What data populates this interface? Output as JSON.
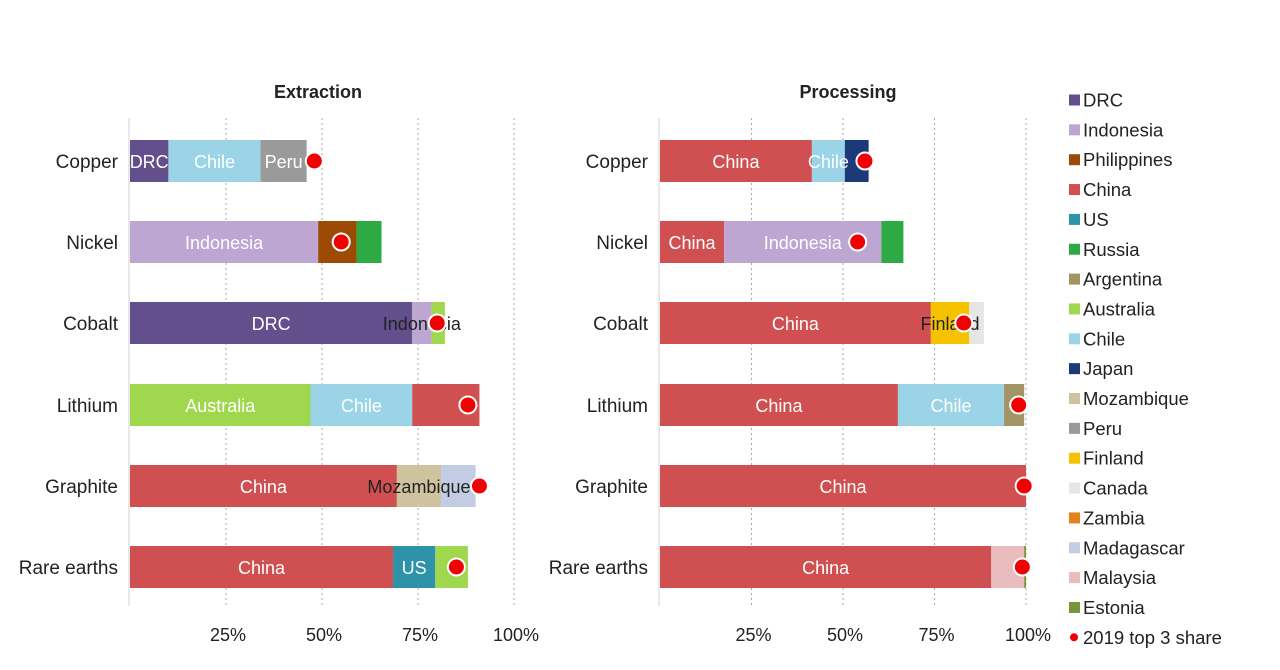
{
  "chart_data": {
    "type": "bar",
    "orientation": "horizontal",
    "stacked": true,
    "categories": [
      "Copper",
      "Nickel",
      "Cobalt",
      "Lithium",
      "Graphite",
      "Rare earths"
    ],
    "xlim": [
      0,
      100
    ],
    "xticks": [
      "25%",
      "50%",
      "75%",
      "100%"
    ],
    "grid": "vertical dotted",
    "legend_position": "right",
    "legend": [
      {
        "name": "DRC",
        "color": "#634F8C"
      },
      {
        "name": "Indonesia",
        "color": "#BEA6D3"
      },
      {
        "name": "Philippines",
        "color": "#9C4A06"
      },
      {
        "name": "China",
        "color": "#D04F50"
      },
      {
        "name": "US",
        "color": "#2E93A8"
      },
      {
        "name": "Russia",
        "color": "#2DAA44"
      },
      {
        "name": "Argentina",
        "color": "#A39563"
      },
      {
        "name": "Australia",
        "color": "#9FD84E"
      },
      {
        "name": "Chile",
        "color": "#9AD4E6"
      },
      {
        "name": "Japan",
        "color": "#1D3A78"
      },
      {
        "name": "Mozambique",
        "color": "#CFC39F"
      },
      {
        "name": "Peru",
        "color": "#9A9A9A"
      },
      {
        "name": "Finland",
        "color": "#F5C200"
      },
      {
        "name": "Canada",
        "color": "#E6E6E6"
      },
      {
        "name": "Zambia",
        "color": "#E4821E"
      },
      {
        "name": "Madagascar",
        "color": "#C2CCE3"
      },
      {
        "name": "Malaysia",
        "color": "#E9BDBE"
      },
      {
        "name": "Estonia",
        "color": "#76963A"
      },
      {
        "name": "2019 top 3 share",
        "color": "#F00000",
        "marker": "dot"
      }
    ],
    "panels": [
      {
        "title": "Extraction",
        "bars": [
          {
            "category": "Copper",
            "segments": [
              {
                "country": "DRC",
                "value": 10,
                "label": "DRC"
              },
              {
                "country": "Chile",
                "value": 24,
                "label": "Chile"
              },
              {
                "country": "Peru",
                "value": 12,
                "label": "Peru"
              }
            ],
            "top3_2019": 48
          },
          {
            "category": "Nickel",
            "segments": [
              {
                "country": "Indonesia",
                "value": 49,
                "label": "Indonesia"
              },
              {
                "country": "Philippines",
                "value": 10,
                "label": ""
              },
              {
                "country": "Russia",
                "value": 6.5,
                "label": ""
              }
            ],
            "top3_2019": 55
          },
          {
            "category": "Cobalt",
            "segments": [
              {
                "country": "DRC",
                "value": 73.5,
                "label": "DRC"
              },
              {
                "country": "Indonesia",
                "value": 5,
                "label": "Indonesia"
              },
              {
                "country": "Australia",
                "value": 3.5,
                "label": ""
              }
            ],
            "top3_2019": 80
          },
          {
            "category": "Lithium",
            "segments": [
              {
                "country": "Australia",
                "value": 47,
                "label": "Australia"
              },
              {
                "country": "Chile",
                "value": 26.5,
                "label": "Chile"
              },
              {
                "country": "China",
                "value": 17.5,
                "label": ""
              }
            ],
            "top3_2019": 88
          },
          {
            "category": "Graphite",
            "segments": [
              {
                "country": "China",
                "value": 69.5,
                "label": "China"
              },
              {
                "country": "Mozambique",
                "value": 11.5,
                "label": "Mozambique"
              },
              {
                "country": "Madagascar",
                "value": 9,
                "label": ""
              }
            ],
            "top3_2019": 91
          },
          {
            "category": "Rare earths",
            "segments": [
              {
                "country": "China",
                "value": 68.5,
                "label": "China"
              },
              {
                "country": "US",
                "value": 11,
                "label": "US"
              },
              {
                "country": "Australia",
                "value": 8.5,
                "label": ""
              }
            ],
            "top3_2019": 85
          }
        ]
      },
      {
        "title": "Processing",
        "bars": [
          {
            "category": "Copper",
            "segments": [
              {
                "country": "China",
                "value": 41.5,
                "label": "China"
              },
              {
                "country": "Chile",
                "value": 9,
                "label": "Chile"
              },
              {
                "country": "Japan",
                "value": 6.5,
                "label": ""
              }
            ],
            "top3_2019": 56
          },
          {
            "category": "Nickel",
            "segments": [
              {
                "country": "China",
                "value": 17.5,
                "label": "China"
              },
              {
                "country": "Indonesia",
                "value": 43,
                "label": "Indonesia"
              },
              {
                "country": "Russia",
                "value": 6,
                "label": ""
              }
            ],
            "top3_2019": 54
          },
          {
            "category": "Cobalt",
            "segments": [
              {
                "country": "China",
                "value": 74,
                "label": "China"
              },
              {
                "country": "Finland",
                "value": 10.5,
                "label": "Finland"
              },
              {
                "country": "Canada",
                "value": 4,
                "label": ""
              }
            ],
            "top3_2019": 83
          },
          {
            "category": "Lithium",
            "segments": [
              {
                "country": "China",
                "value": 65,
                "label": "China"
              },
              {
                "country": "Chile",
                "value": 29,
                "label": "Chile"
              },
              {
                "country": "Argentina",
                "value": 5.5,
                "label": ""
              }
            ],
            "top3_2019": 98
          },
          {
            "category": "Graphite",
            "segments": [
              {
                "country": "China",
                "value": 100,
                "label": "China"
              }
            ],
            "top3_2019": 99.5
          },
          {
            "category": "Rare earths",
            "segments": [
              {
                "country": "China",
                "value": 90.5,
                "label": "China"
              },
              {
                "country": "Malaysia",
                "value": 9,
                "label": ""
              },
              {
                "country": "Estonia",
                "value": 0.5,
                "label": ""
              }
            ],
            "top3_2019": 99
          }
        ]
      }
    ]
  }
}
